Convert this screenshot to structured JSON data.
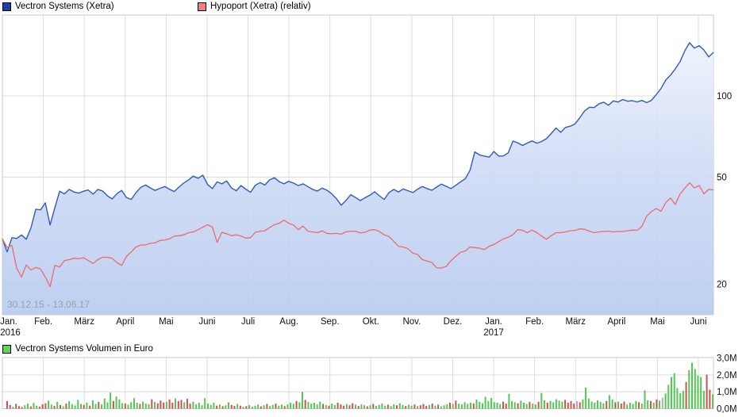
{
  "legend": {
    "series1_label": "Vectron Systems (Xetra)",
    "series2_label": "Hypoport (Xetra) (relativ)",
    "volume_label": "Vectron Systems Volumen in Euro"
  },
  "watermark": "30.12.15 - 13.06.17",
  "colors": {
    "series1_line": "#2f5bbf",
    "series1_swatch": "#1d3faa",
    "series2_line": "#ee6a6a",
    "series2_swatch": "#f38080",
    "volume_swatch": "#5cd65c",
    "volume_up": "#53c653",
    "volume_down": "#cf5050",
    "volume_neutral": "#b0b0b0",
    "grid": "#dcdcdc",
    "frame": "#c8c8c8",
    "area_top": "#f3f7fe",
    "area_mid": "#cfdbf5",
    "area_bottom": "#b7cbf0"
  },
  "chart_data": [
    {
      "type": "line",
      "title": "Vectron Systems vs. Hypoport (relativ), 30.12.15 - 13.06.17",
      "y_scale": "log",
      "y_ticks": [
        100,
        50,
        20
      ],
      "y_tick_labels": [
        "100",
        "50",
        "20"
      ],
      "x_tick_labels": [
        "Jan.",
        "Feb.",
        "März",
        "April",
        "Mai",
        "Juni",
        "Juli",
        "Aug.",
        "Sep.",
        "Okt.",
        "Nov.",
        "Dez.",
        "Jan.",
        "Feb.",
        "März",
        "April",
        "Mai",
        "Juni"
      ],
      "x_year_labels": [
        {
          "index": 0,
          "label": "2016"
        },
        {
          "index": 12,
          "label": "2017"
        }
      ],
      "grid": true,
      "legend_position": "top-left",
      "series": [
        {
          "name": "Vectron Systems (Xetra)",
          "style": "area",
          "values": [
            29.5,
            26.4,
            29.8,
            29.6,
            30.5,
            29.4,
            32.5,
            38.0,
            37.8,
            40.1,
            33.2,
            38.5,
            44.3,
            43.3,
            45.0,
            44.0,
            43.6,
            44.3,
            44.8,
            43.2,
            45.0,
            44.4,
            42.6,
            41.5,
            43.4,
            44.6,
            42.0,
            41.3,
            43.8,
            45.8,
            46.7,
            45.6,
            44.6,
            45.4,
            46.1,
            45.1,
            44.2,
            45.9,
            47.5,
            48.8,
            50.4,
            49.5,
            50.8,
            46.9,
            45.3,
            48.0,
            47.2,
            48.4,
            45.6,
            44.5,
            46.5,
            45.1,
            43.9,
            46.6,
            47.7,
            46.7,
            48.8,
            49.7,
            48.1,
            47.2,
            48.2,
            47.5,
            46.5,
            47.2,
            46.1,
            45.0,
            44.4,
            45.5,
            44.7,
            43.4,
            41.6,
            39.3,
            41.0,
            43.0,
            42.0,
            40.9,
            41.9,
            42.8,
            44.1,
            42.6,
            41.3,
            43.8,
            45.0,
            44.0,
            45.2,
            44.5,
            43.8,
            45.1,
            46.1,
            45.3,
            44.7,
            45.9,
            47.1,
            46.2,
            45.3,
            46.6,
            48.0,
            49.3,
            53.0,
            62.0,
            60.4,
            59.8,
            59.3,
            62.2,
            59.8,
            59.9,
            61.5,
            68.0,
            67.0,
            65.5,
            66.9,
            68.1,
            66.8,
            67.8,
            69.4,
            72.5,
            76.0,
            73.3,
            76.4,
            77.2,
            78.8,
            83.0,
            88.0,
            90.8,
            90.5,
            93.5,
            94.8,
            92.3,
            95.8,
            94.9,
            97.0,
            95.6,
            96.0,
            95.0,
            96.2,
            94.5,
            96.3,
            101.0,
            106.5,
            114.5,
            119.5,
            126.0,
            134.0,
            147.0,
            157.5,
            150.5,
            153.5,
            148.0,
            139.5,
            145.0
          ]
        },
        {
          "name": "Hypoport (Xetra) (relativ)",
          "style": "line",
          "values": [
            29.5,
            27.4,
            27.9,
            23.0,
            21.3,
            23.6,
            22.6,
            23.1,
            22.8,
            21.3,
            19.6,
            23.5,
            23.2,
            24.5,
            24.7,
            25.0,
            24.9,
            25.1,
            24.5,
            23.9,
            24.7,
            25.2,
            25.2,
            25.0,
            24.1,
            23.5,
            25.4,
            26.4,
            27.5,
            28.0,
            28.0,
            28.4,
            28.5,
            29.1,
            29.2,
            29.5,
            30.2,
            30.3,
            30.5,
            31.1,
            31.3,
            31.9,
            32.6,
            33.3,
            32.6,
            28.6,
            31.2,
            30.8,
            30.3,
            30.5,
            30.2,
            29.7,
            29.8,
            31.2,
            31.5,
            31.6,
            32.5,
            33.3,
            33.7,
            34.6,
            33.7,
            33.2,
            31.9,
            32.9,
            31.5,
            31.3,
            31.1,
            31.6,
            30.9,
            30.8,
            30.9,
            30.7,
            31.3,
            31.5,
            31.5,
            31.0,
            31.2,
            31.8,
            31.9,
            31.4,
            30.5,
            30.1,
            28.9,
            27.7,
            27.5,
            27.1,
            26.1,
            25.8,
            24.7,
            24.4,
            24.1,
            23.0,
            23.0,
            23.3,
            24.5,
            25.4,
            26.3,
            26.6,
            27.5,
            27.4,
            27.2,
            26.9,
            27.7,
            28.1,
            28.8,
            29.5,
            29.9,
            30.6,
            31.9,
            31.7,
            31.1,
            31.8,
            31.1,
            30.2,
            29.4,
            30.3,
            31.1,
            31.1,
            31.3,
            31.6,
            31.7,
            32.1,
            32.0,
            31.5,
            31.1,
            31.3,
            31.4,
            31.5,
            31.3,
            31.4,
            31.4,
            31.6,
            31.8,
            31.7,
            32.8,
            35.8,
            37.2,
            38.2,
            37.3,
            40.2,
            41.8,
            39.6,
            43.2,
            45.5,
            47.6,
            45.6,
            46.5,
            43.3,
            45.0,
            44.8
          ]
        }
      ]
    },
    {
      "type": "bar",
      "title": "Vectron Systems Volumen in Euro",
      "y_ticks": [
        3.0,
        2.0,
        1.0,
        0.0
      ],
      "y_tick_labels": [
        "3,0M",
        "2,0M",
        "1,0M",
        "0,0M"
      ],
      "unit": "Mio. Euro",
      "values": [
        0.45,
        0.22,
        0.12,
        0.28,
        0.15,
        0.1,
        0.2,
        0.3,
        0.14,
        0.34,
        0.18,
        0.12,
        0.26,
        0.32,
        0.48,
        0.24,
        0.16,
        0.4,
        0.22,
        0.14,
        0.3,
        0.44,
        0.26,
        0.19,
        0.52,
        0.28,
        0.22,
        0.35,
        0.18,
        0.5,
        0.28,
        0.4,
        0.25,
        0.6,
        0.38,
        0.95,
        0.45,
        0.72,
        0.55,
        0.33,
        0.3,
        0.24,
        0.38,
        0.62,
        0.35,
        0.28,
        0.42,
        0.3,
        0.26,
        0.56,
        0.4,
        0.32,
        0.48,
        0.36,
        0.4,
        0.55,
        0.35,
        0.6,
        0.45,
        0.52,
        0.38,
        0.58,
        0.3,
        0.42,
        0.25,
        0.35,
        0.2,
        0.62,
        0.3,
        0.22,
        0.35,
        0.18,
        0.25,
        0.15,
        0.2,
        0.38,
        0.22,
        0.16,
        0.28,
        0.18,
        0.12,
        0.15,
        0.22,
        0.12,
        0.18,
        0.25,
        0.14,
        0.2,
        0.28,
        0.16,
        0.22,
        0.3,
        0.18,
        0.24,
        0.15,
        0.25,
        0.35,
        0.28,
        0.45,
        0.38,
        1.0,
        0.52,
        0.4,
        0.3,
        0.35,
        0.25,
        0.42,
        0.28,
        0.22,
        0.18,
        0.3,
        0.22,
        0.35,
        0.25,
        0.18,
        0.28,
        0.2,
        0.32,
        0.24,
        0.16,
        0.26,
        0.2,
        0.14,
        0.2,
        0.28,
        0.16,
        0.22,
        0.3,
        0.18,
        0.24,
        0.15,
        0.26,
        0.2,
        0.32,
        0.22,
        0.16,
        0.24,
        0.18,
        0.25,
        0.15,
        0.2,
        0.28,
        0.16,
        0.22,
        0.3,
        0.18,
        0.24,
        0.14,
        0.2,
        0.26,
        0.35,
        0.28,
        0.48,
        0.3,
        0.25,
        0.38,
        0.28,
        0.35,
        0.3,
        0.55,
        0.4,
        0.32,
        0.7,
        0.45,
        0.64,
        0.38,
        0.35,
        0.28,
        0.42,
        0.3,
        0.88,
        0.45,
        0.38,
        0.32,
        0.48,
        0.35,
        0.28,
        0.4,
        0.3,
        0.25,
        0.4,
        0.93,
        0.5,
        0.35,
        0.45,
        0.38,
        0.56,
        0.48,
        0.42,
        0.52,
        0.35,
        0.45,
        0.3,
        0.45,
        0.38,
        0.55,
        1.25,
        0.6,
        0.42,
        0.35,
        0.5,
        0.4,
        0.32,
        0.45,
        0.8,
        0.55,
        0.38,
        0.42,
        0.3,
        0.42,
        0.25,
        0.35,
        0.28,
        0.45,
        0.38,
        0.3,
        1.08,
        0.5,
        0.45,
        0.35,
        0.55,
        0.48,
        0.65,
        0.9,
        1.42,
        1.88,
        2.1,
        1.22,
        0.92,
        1.05,
        1.58,
        2.28,
        2.72,
        2.35,
        1.96,
        1.88,
        1.05,
        2.02,
        1.12,
        0.85
      ],
      "bar_colors": "rrgrrrggrggrrrggrgrgrgggggrgrggrggggrgggrggggrgggrgrrrgrrgrrgrrggggggggrgrggrrgrgrggggrgrggrggrgggrggrgggggrgrggrrrgrrgrggrgrggggrggrggrggrgrrrgrgrgggrgrgggggrgggggggggrrgggrgggrggrggrgggggrrrrnrggggggggrggrgrrggggrgggrgrgngggggggrggggggrrgrrrg",
      "color_legend": {
        "g": "green (up)",
        "r": "red (down)",
        "n": "gray (unchanged)"
      }
    }
  ]
}
